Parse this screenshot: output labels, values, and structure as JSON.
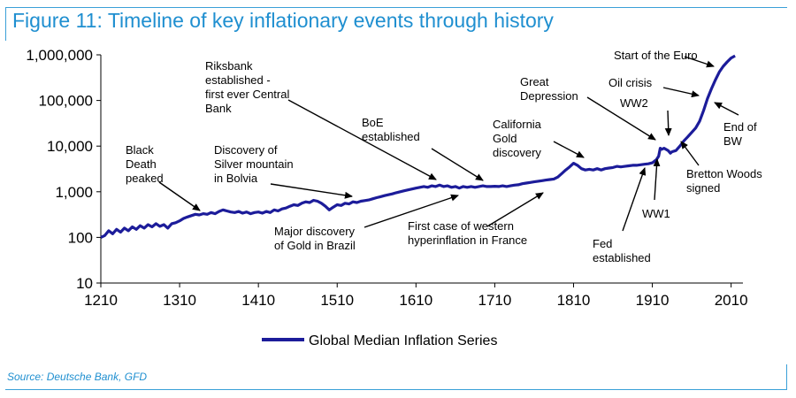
{
  "title": "Figure 11: Timeline of key inflationary events through history",
  "source": "Source: Deutsche Bank, GFD",
  "colors": {
    "accent": "#1f8fd0",
    "series": "#1c1c9a"
  },
  "chart_data": {
    "type": "line",
    "title": "Figure 11: Timeline of key inflationary events through history",
    "xlabel": "",
    "ylabel": "",
    "xlim": [
      1210,
      2025
    ],
    "ylim": [
      10,
      1000000
    ],
    "y_scale": "log",
    "grid": false,
    "legend_position": "bottom-center",
    "x_ticks": [
      1210,
      1310,
      1410,
      1510,
      1610,
      1710,
      1810,
      1910,
      2010
    ],
    "x_tick_labels": [
      "1210",
      "1310",
      "1410",
      "1510",
      "1610",
      "1710",
      "1810",
      "1910",
      "2010"
    ],
    "y_ticks": [
      10,
      100,
      1000,
      10000,
      100000,
      1000000
    ],
    "y_tick_labels": [
      "10",
      "100",
      "1,000",
      "10,000",
      "100,000",
      "1,000,000"
    ],
    "series": [
      {
        "name": "Global Median Inflation Series",
        "points": [
          [
            1210,
            100
          ],
          [
            1215,
            110
          ],
          [
            1220,
            140
          ],
          [
            1225,
            120
          ],
          [
            1230,
            150
          ],
          [
            1235,
            130
          ],
          [
            1240,
            160
          ],
          [
            1245,
            140
          ],
          [
            1250,
            170
          ],
          [
            1255,
            150
          ],
          [
            1260,
            180
          ],
          [
            1265,
            160
          ],
          [
            1270,
            190
          ],
          [
            1275,
            170
          ],
          [
            1280,
            200
          ],
          [
            1285,
            175
          ],
          [
            1290,
            190
          ],
          [
            1295,
            160
          ],
          [
            1300,
            200
          ],
          [
            1305,
            210
          ],
          [
            1310,
            230
          ],
          [
            1315,
            260
          ],
          [
            1320,
            280
          ],
          [
            1325,
            300
          ],
          [
            1330,
            320
          ],
          [
            1335,
            310
          ],
          [
            1340,
            330
          ],
          [
            1345,
            320
          ],
          [
            1350,
            350
          ],
          [
            1355,
            330
          ],
          [
            1360,
            370
          ],
          [
            1365,
            400
          ],
          [
            1370,
            380
          ],
          [
            1375,
            360
          ],
          [
            1380,
            350
          ],
          [
            1385,
            370
          ],
          [
            1390,
            340
          ],
          [
            1395,
            360
          ],
          [
            1400,
            330
          ],
          [
            1405,
            350
          ],
          [
            1410,
            360
          ],
          [
            1415,
            340
          ],
          [
            1420,
            370
          ],
          [
            1425,
            350
          ],
          [
            1430,
            400
          ],
          [
            1435,
            380
          ],
          [
            1440,
            420
          ],
          [
            1445,
            440
          ],
          [
            1450,
            480
          ],
          [
            1455,
            520
          ],
          [
            1460,
            500
          ],
          [
            1465,
            560
          ],
          [
            1470,
            600
          ],
          [
            1475,
            580
          ],
          [
            1480,
            650
          ],
          [
            1485,
            620
          ],
          [
            1490,
            560
          ],
          [
            1495,
            480
          ],
          [
            1500,
            400
          ],
          [
            1505,
            460
          ],
          [
            1510,
            520
          ],
          [
            1515,
            500
          ],
          [
            1520,
            560
          ],
          [
            1525,
            540
          ],
          [
            1530,
            600
          ],
          [
            1535,
            580
          ],
          [
            1540,
            620
          ],
          [
            1545,
            640
          ],
          [
            1550,
            660
          ],
          [
            1555,
            700
          ],
          [
            1560,
            740
          ],
          [
            1565,
            780
          ],
          [
            1570,
            820
          ],
          [
            1575,
            860
          ],
          [
            1580,
            900
          ],
          [
            1585,
            950
          ],
          [
            1590,
            1000
          ],
          [
            1595,
            1050
          ],
          [
            1600,
            1100
          ],
          [
            1605,
            1150
          ],
          [
            1610,
            1200
          ],
          [
            1615,
            1250
          ],
          [
            1620,
            1300
          ],
          [
            1625,
            1250
          ],
          [
            1630,
            1350
          ],
          [
            1635,
            1300
          ],
          [
            1640,
            1400
          ],
          [
            1645,
            1300
          ],
          [
            1650,
            1350
          ],
          [
            1655,
            1250
          ],
          [
            1660,
            1300
          ],
          [
            1665,
            1200
          ],
          [
            1670,
            1300
          ],
          [
            1675,
            1250
          ],
          [
            1680,
            1300
          ],
          [
            1685,
            1250
          ],
          [
            1690,
            1300
          ],
          [
            1695,
            1350
          ],
          [
            1700,
            1300
          ],
          [
            1705,
            1300
          ],
          [
            1710,
            1320
          ],
          [
            1715,
            1300
          ],
          [
            1720,
            1350
          ],
          [
            1725,
            1300
          ],
          [
            1730,
            1350
          ],
          [
            1735,
            1400
          ],
          [
            1740,
            1420
          ],
          [
            1745,
            1500
          ],
          [
            1750,
            1550
          ],
          [
            1755,
            1600
          ],
          [
            1760,
            1650
          ],
          [
            1765,
            1700
          ],
          [
            1770,
            1750
          ],
          [
            1775,
            1800
          ],
          [
            1780,
            1850
          ],
          [
            1785,
            1900
          ],
          [
            1790,
            2100
          ],
          [
            1795,
            2500
          ],
          [
            1800,
            3000
          ],
          [
            1805,
            3500
          ],
          [
            1810,
            4200
          ],
          [
            1815,
            3800
          ],
          [
            1820,
            3200
          ],
          [
            1825,
            3000
          ],
          [
            1830,
            3100
          ],
          [
            1835,
            3000
          ],
          [
            1840,
            3200
          ],
          [
            1845,
            3000
          ],
          [
            1850,
            3200
          ],
          [
            1855,
            3300
          ],
          [
            1860,
            3400
          ],
          [
            1865,
            3600
          ],
          [
            1870,
            3500
          ],
          [
            1875,
            3600
          ],
          [
            1880,
            3700
          ],
          [
            1885,
            3800
          ],
          [
            1890,
            3800
          ],
          [
            1895,
            3900
          ],
          [
            1900,
            4000
          ],
          [
            1905,
            4100
          ],
          [
            1910,
            4300
          ],
          [
            1915,
            5000
          ],
          [
            1918,
            6000
          ],
          [
            1920,
            9000
          ],
          [
            1922,
            8500
          ],
          [
            1925,
            9000
          ],
          [
            1930,
            8000
          ],
          [
            1933,
            7000
          ],
          [
            1935,
            7500
          ],
          [
            1940,
            8000
          ],
          [
            1945,
            10000
          ],
          [
            1950,
            13000
          ],
          [
            1955,
            16000
          ],
          [
            1960,
            20000
          ],
          [
            1965,
            25000
          ],
          [
            1970,
            35000
          ],
          [
            1975,
            60000
          ],
          [
            1980,
            110000
          ],
          [
            1985,
            180000
          ],
          [
            1990,
            280000
          ],
          [
            1995,
            420000
          ],
          [
            2000,
            560000
          ],
          [
            2005,
            700000
          ],
          [
            2010,
            850000
          ],
          [
            2015,
            950000
          ]
        ]
      }
    ],
    "annotations": [
      "Black Death peaked",
      "Discovery of Silver mountain in Bolvia",
      "Riksbank established - first ever Central Bank",
      "BoE established",
      "California Gold discovery",
      "Great Depression",
      "WW2",
      "Oil crisis",
      "Start of the Euro",
      "End of BW",
      "Bretton Woods signed",
      "WW1",
      "Fed established",
      "First case of western hyperinflation in France",
      "Major discovery of Gold in Brazil"
    ]
  }
}
